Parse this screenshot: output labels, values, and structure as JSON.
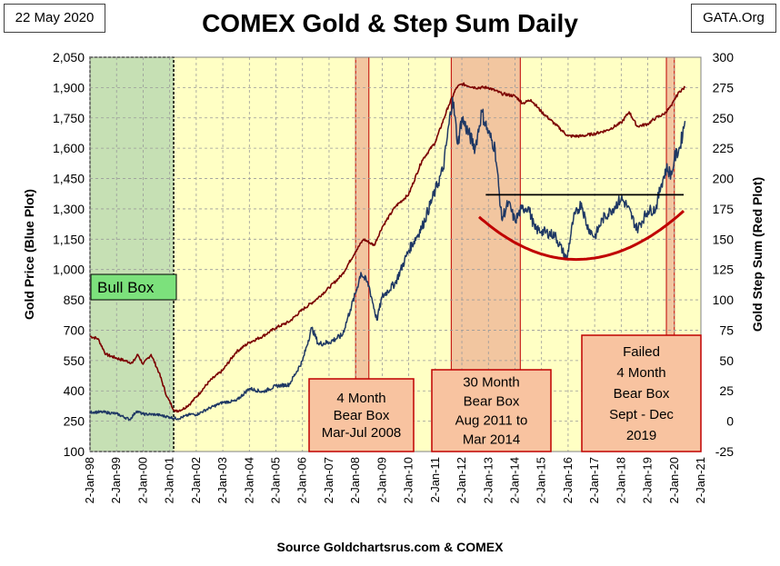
{
  "header": {
    "date": "22 May 2020",
    "title": "COMEX Gold & Step Sum Daily",
    "site": "GATA.Org"
  },
  "source": "Source Goldchartsrus.com & COMEX",
  "colors": {
    "plot_bg": "#ffffc4",
    "gold": "#1f3864",
    "stepsum": "#7b0000",
    "fit_curve": "#c00000",
    "bear_box_fill": "#f2c6a0",
    "bear_box_border": "#c00000",
    "bull_box_fill": "#c6e0b4",
    "bull_label_fill": "#7ce17c",
    "annotation_fill": "#f8c3a0",
    "resistance_line": "#000000"
  },
  "chart_data": {
    "type": "line",
    "title": "COMEX Gold & Step Sum Daily",
    "xlabel": "",
    "ylabel": "Gold Price    (Blue Plot)",
    "y2label": "Gold Step Sum    (Red Plot)",
    "ylim": [
      100,
      2050
    ],
    "y2lim": [
      -25,
      300
    ],
    "yticks": [
      100,
      250,
      400,
      550,
      700,
      850,
      1000,
      1150,
      1300,
      1450,
      1600,
      1750,
      1900,
      2050
    ],
    "y2ticks": [
      -25,
      0,
      25,
      50,
      75,
      100,
      125,
      150,
      175,
      200,
      225,
      250,
      275,
      300
    ],
    "yticklabels": [
      "100",
      "250",
      "400",
      "550",
      "700",
      "850",
      "1,000",
      "1,150",
      "1,300",
      "1,450",
      "1,600",
      "1,750",
      "1,900",
      "2,050"
    ],
    "y2ticklabels": [
      "-25",
      "0",
      "25",
      "50",
      "75",
      "100",
      "125",
      "150",
      "175",
      "200",
      "225",
      "250",
      "275",
      "300"
    ],
    "xlim": [
      1998.0,
      2021.0
    ],
    "xticks": [
      "2-Jan-98",
      "2-Jan-99",
      "2-Jan-00",
      "2-Jan-01",
      "2-Jan-02",
      "2-Jan-03",
      "2-Jan-04",
      "2-Jan-05",
      "2-Jan-06",
      "2-Jan-07",
      "2-Jan-08",
      "2-Jan-09",
      "2-Jan-10",
      "2-Jan-11",
      "2-Jan-12",
      "2-Jan-13",
      "2-Jan-14",
      "2-Jan-15",
      "2-Jan-16",
      "2-Jan-17",
      "2-Jan-18",
      "2-Jan-19",
      "2-Jan-20",
      "2-Jan-21"
    ],
    "grid": true,
    "series": [
      {
        "name": "Gold Price",
        "axis": "left",
        "x": [
          1998.0,
          1998.5,
          1999.0,
          1999.5,
          1999.75,
          2000.0,
          2000.5,
          2001.0,
          2001.3,
          2001.8,
          2002.0,
          2002.5,
          2003.0,
          2003.5,
          2004.0,
          2004.5,
          2005.0,
          2005.5,
          2006.0,
          2006.35,
          2006.6,
          2007.0,
          2007.5,
          2007.8,
          2008.0,
          2008.2,
          2008.5,
          2008.8,
          2009.0,
          2009.5,
          2010.0,
          2010.5,
          2011.0,
          2011.3,
          2011.65,
          2011.85,
          2012.0,
          2012.5,
          2012.75,
          2013.0,
          2013.25,
          2013.5,
          2013.75,
          2014.0,
          2014.25,
          2014.5,
          2014.75,
          2015.0,
          2015.5,
          2015.95,
          2016.2,
          2016.5,
          2016.7,
          2017.0,
          2017.3,
          2017.6,
          2018.0,
          2018.2,
          2018.6,
          2019.0,
          2019.3,
          2019.5,
          2019.7,
          2019.9,
          2020.0,
          2020.2,
          2020.4
        ],
        "values": [
          295,
          295,
          287,
          258,
          300,
          285,
          283,
          270,
          262,
          285,
          282,
          315,
          343,
          350,
          412,
          395,
          424,
          431,
          548,
          712,
          632,
          640,
          675,
          802,
          882,
          985,
          920,
          750,
          865,
          935,
          1095,
          1210,
          1390,
          1500,
          1850,
          1620,
          1750,
          1600,
          1780,
          1675,
          1600,
          1250,
          1330,
          1240,
          1300,
          1310,
          1200,
          1190,
          1170,
          1050,
          1250,
          1330,
          1220,
          1160,
          1250,
          1290,
          1350,
          1320,
          1200,
          1290,
          1300,
          1420,
          1500,
          1470,
          1550,
          1600,
          1735
        ]
      },
      {
        "name": "Step Sum",
        "axis": "right",
        "x": [
          1998.0,
          1998.3,
          1998.6,
          1999.0,
          1999.3,
          1999.6,
          1999.8,
          2000.0,
          2000.3,
          2000.6,
          2000.9,
          2001.2,
          2001.5,
          2001.8,
          2002.0,
          2002.5,
          2003.0,
          2003.5,
          2004.0,
          2004.5,
          2005.0,
          2005.5,
          2006.0,
          2006.5,
          2007.0,
          2007.5,
          2008.0,
          2008.3,
          2008.7,
          2009.0,
          2009.5,
          2010.0,
          2010.5,
          2011.0,
          2011.5,
          2011.8,
          2012.0,
          2012.5,
          2013.0,
          2013.5,
          2014.0,
          2014.3,
          2014.6,
          2015.0,
          2015.5,
          2016.0,
          2016.5,
          2017.0,
          2017.5,
          2018.0,
          2018.3,
          2018.6,
          2019.0,
          2019.3,
          2019.6,
          2019.9,
          2020.0,
          2020.2,
          2020.4
        ],
        "values": [
          70,
          68,
          55,
          52,
          50,
          48,
          55,
          47,
          55,
          40,
          20,
          8,
          10,
          15,
          20,
          33,
          42,
          57,
          65,
          70,
          77,
          82,
          92,
          100,
          110,
          121,
          140,
          150,
          145,
          160,
          177,
          187,
          215,
          230,
          260,
          275,
          278,
          275,
          275,
          270,
          268,
          262,
          265,
          255,
          245,
          235,
          235,
          237,
          240,
          246,
          255,
          243,
          245,
          250,
          253,
          260,
          265,
          272,
          275
        ]
      }
    ],
    "resistance_line": {
      "x": [
        2012.9,
        2020.35
      ],
      "value": 1370
    },
    "fit_curve": {
      "x": [
        2012.65,
        2020.35
      ],
      "vertex": [
        2016.3,
        1050
      ],
      "ends": [
        1260,
        1290
      ]
    },
    "bull_box": {
      "label": "Bull Box",
      "x": [
        1998.0,
        2001.15
      ]
    },
    "bear_boxes": [
      {
        "x": [
          2008.0,
          2008.5
        ]
      },
      {
        "x": [
          2011.6,
          2014.2
        ]
      },
      {
        "x": [
          2019.7,
          2020.0
        ]
      }
    ],
    "annotations": [
      {
        "lines": [
          "4 Month",
          "Bear Box",
          "Mar-Jul 2008"
        ]
      },
      {
        "lines": [
          "30 Month",
          "Bear Box",
          "Aug 2011 to",
          "Mar 2014"
        ]
      },
      {
        "lines": [
          "Failed",
          "4 Month",
          "Bear Box",
          "Sept - Dec",
          "2019"
        ]
      }
    ]
  }
}
